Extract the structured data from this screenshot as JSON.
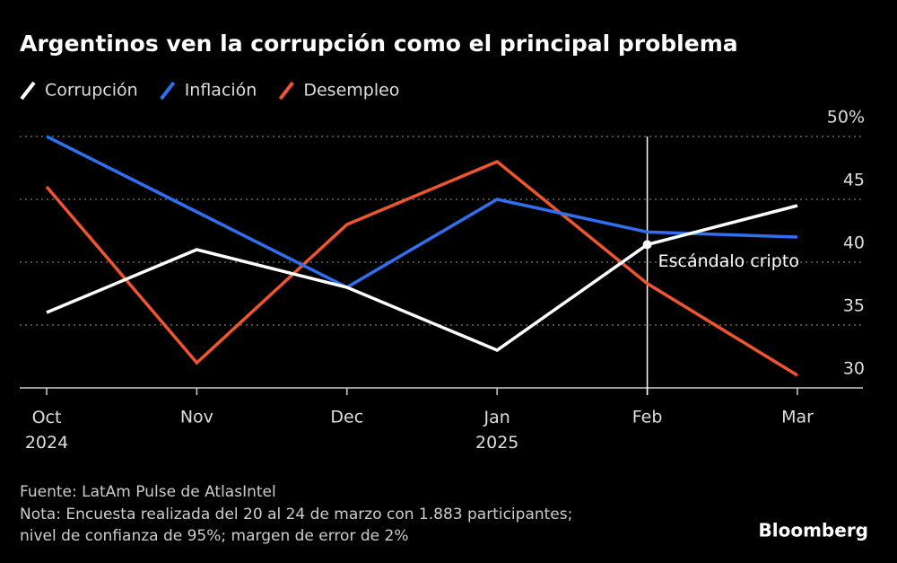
{
  "chart_data": {
    "type": "line",
    "title": "Argentinos ven la corrupción como el principal problema",
    "categories": [
      "Oct 2024",
      "Nov",
      "Dec",
      "Jan 2025",
      "Feb",
      "Mar"
    ],
    "series": [
      {
        "name": "Corrupción",
        "color": "#ffffff",
        "values": [
          36,
          41,
          38,
          33,
          41.4,
          44.5
        ]
      },
      {
        "name": "Inflación",
        "color": "#2f6ff0",
        "values": [
          50,
          44,
          38,
          45,
          42.4,
          42
        ]
      },
      {
        "name": "Desempleo",
        "color": "#f05530",
        "values": [
          46,
          32,
          43,
          48,
          38.3,
          31
        ]
      }
    ],
    "ylim": [
      30,
      50
    ],
    "yticks": [
      30,
      35,
      40,
      45,
      {
        "value": 50,
        "label": "50%"
      }
    ],
    "grid": true,
    "annotation": {
      "text": "Escándalo cripto",
      "x": "Feb"
    },
    "source": "Fuente: LatAm Pulse de AtlasIntel",
    "note": [
      "Nota: Encuesta realizada del 20 al 24 de marzo con 1.883 participantes;",
      "nivel de confianza de 95%; margen de error de 2%"
    ],
    "brand": "Bloomberg"
  }
}
